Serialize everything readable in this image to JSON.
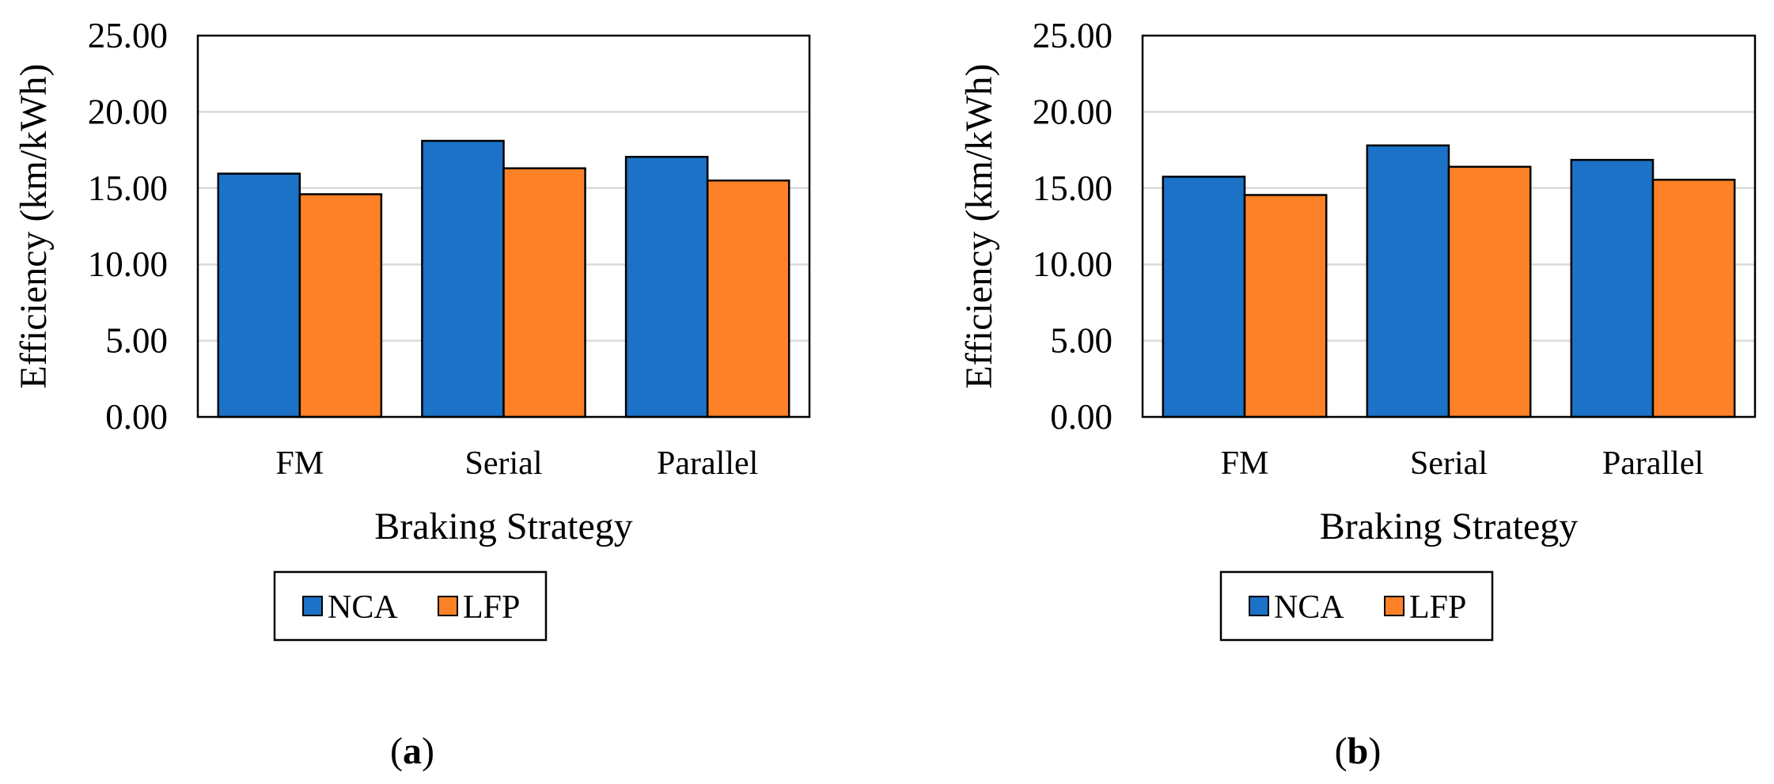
{
  "chart_data": [
    {
      "type": "bar",
      "panel_label": "a",
      "title": "",
      "xlabel": "Braking Strategy",
      "ylabel": "Efficiency (km/kWh)",
      "categories": [
        "FM",
        "Serial",
        "Parallel"
      ],
      "ylim": [
        0,
        25
      ],
      "yticks": [
        "0.00",
        "5.00",
        "10.00",
        "15.00",
        "20.00",
        "25.00"
      ],
      "grid": true,
      "legend_position": "bottom",
      "series": [
        {
          "name": "NCA",
          "color": "#1b72c6",
          "values": [
            15.95,
            18.1,
            17.05
          ]
        },
        {
          "name": "LFP",
          "color": "#fc8127",
          "values": [
            14.6,
            16.3,
            15.5
          ]
        }
      ]
    },
    {
      "type": "bar",
      "panel_label": "b",
      "title": "",
      "xlabel": "Braking Strategy",
      "ylabel": "Efficiency (km/kWh)",
      "categories": [
        "FM",
        "Serial",
        "Parallel"
      ],
      "ylim": [
        0,
        25
      ],
      "yticks": [
        "0.00",
        "5.00",
        "10.00",
        "15.00",
        "20.00",
        "25.00"
      ],
      "grid": true,
      "legend_position": "bottom",
      "series": [
        {
          "name": "NCA",
          "color": "#1b72c6",
          "values": [
            15.75,
            17.8,
            16.85
          ]
        },
        {
          "name": "LFP",
          "color": "#fc8127",
          "values": [
            14.55,
            16.4,
            15.55
          ]
        }
      ]
    }
  ]
}
